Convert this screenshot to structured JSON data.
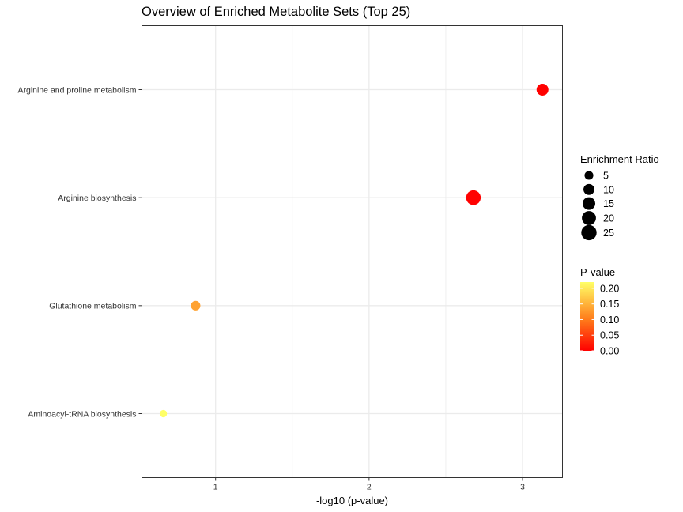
{
  "chart_data": {
    "type": "scatter",
    "title": "Overview of Enriched Metabolite Sets (Top 25)",
    "xlabel": "-log10 (p-value)",
    "ylabel": "",
    "xlim": [
      0.52,
      3.26
    ],
    "x_ticks": [
      1,
      2,
      3
    ],
    "grid": true,
    "categories": [
      "Arginine and proline metabolism",
      "Arginine biosynthesis",
      "Glutathione metabolism",
      "Aminoacyl-tRNA biosynthesis"
    ],
    "points": [
      {
        "category": "Arginine and proline metabolism",
        "x": 3.13,
        "p_value": 0.0007,
        "enrichment_ratio": 12.5
      },
      {
        "category": "Arginine biosynthesis",
        "x": 2.68,
        "p_value": 0.002,
        "enrichment_ratio": 22
      },
      {
        "category": "Glutathione metabolism",
        "x": 0.87,
        "p_value": 0.135,
        "enrichment_ratio": 6.5
      },
      {
        "category": "Aminoacyl-tRNA biosynthesis",
        "x": 0.66,
        "p_value": 0.22,
        "enrichment_ratio": 2.5
      }
    ],
    "size_legend": {
      "title": "Enrichment Ratio",
      "values": [
        5,
        10,
        15,
        20,
        25
      ]
    },
    "color_legend": {
      "title": "P-value",
      "ticks": [
        0.2,
        0.15,
        0.1,
        0.05,
        0.0
      ],
      "tick_labels": [
        "0.20",
        "0.15",
        "0.10",
        "0.05",
        "0.00"
      ],
      "range": [
        0,
        0.22
      ],
      "low_color": "#ff0000",
      "high_color": "#ffff66"
    },
    "legend_position": "right"
  }
}
